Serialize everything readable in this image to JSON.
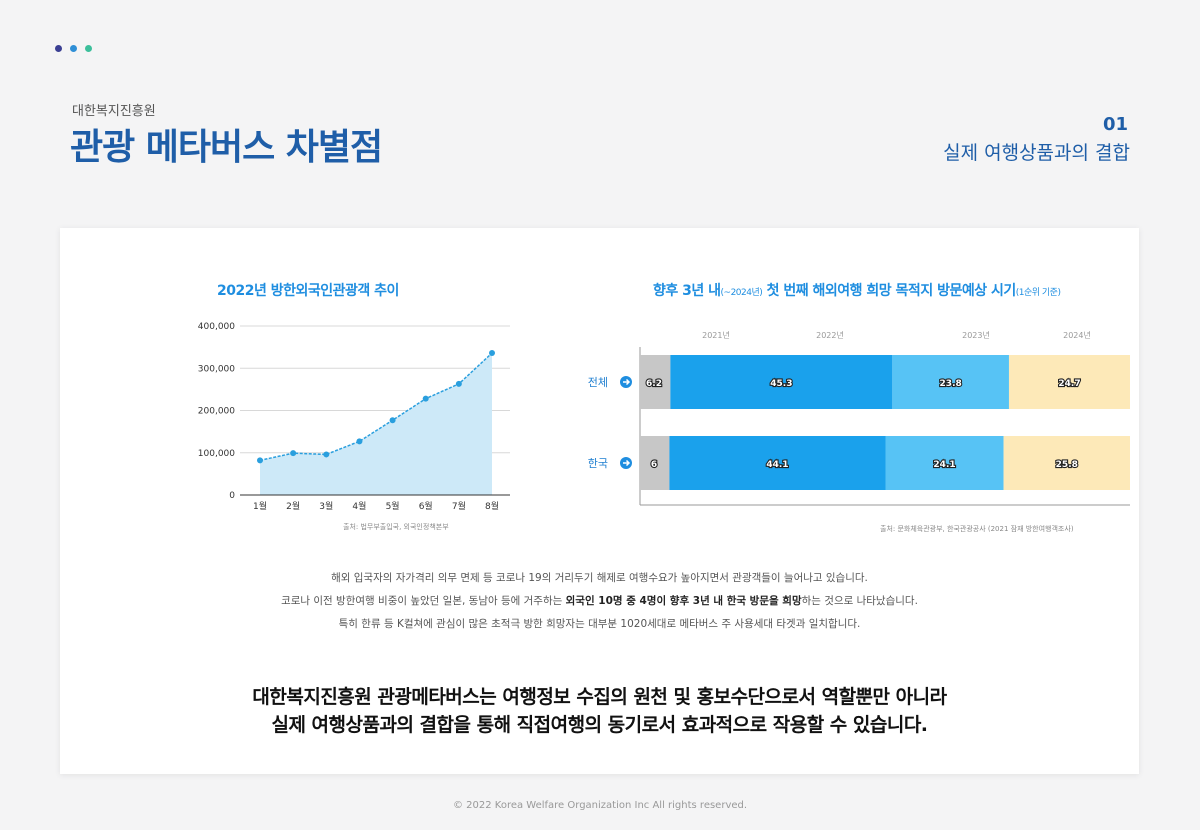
{
  "header": {
    "org": "대한복지진흥원",
    "title": "관광 메타버스 차별점",
    "section_number": "01",
    "section_title": "실제 여행상품과의 결합"
  },
  "colors": {
    "brand": "#1f5ea8",
    "chart_title": "#1f8ee0",
    "dots": [
      "#3b3f93",
      "#2f8fd6",
      "#3cbf9b"
    ]
  },
  "chart_data": [
    {
      "type": "area",
      "title": "2022년 방한외국인관광객 추이",
      "categories": [
        "1월",
        "2월",
        "3월",
        "4월",
        "5월",
        "6월",
        "7월",
        "8월"
      ],
      "values": [
        82000,
        99000,
        96000,
        127000,
        177000,
        228000,
        263000,
        336000
      ],
      "yticks": [
        "0",
        "100,000",
        "200,000",
        "300,000",
        "400,000"
      ],
      "ylim": [
        0,
        400000
      ],
      "grid": true,
      "source": "출처: 법무부출입국, 외국인정책본부"
    },
    {
      "type": "bar",
      "stacked": true,
      "horizontal": true,
      "title_main": "향후 3년 내",
      "title_sub": "(~2024년)",
      "title_rest": " 첫 번째 해외여행 희망 목적지 방문예상 시기",
      "title_tail": "(1순위 기준)",
      "series_labels": [
        "2021년",
        "2022년",
        "2023년",
        "2024년"
      ],
      "series_colors": [
        "#c7c7c7",
        "#1aa1ec",
        "#57c3f5",
        "#fde9b8"
      ],
      "rows": [
        {
          "name": "전체",
          "values": [
            6.2,
            45.3,
            23.8,
            24.7
          ]
        },
        {
          "name": "한국",
          "values": [
            6,
            44.1,
            24.1,
            25.8
          ]
        }
      ],
      "source": "출처: 문화체육관광부, 한국관광공사 (2021 잠재 방한여행객조사)"
    }
  ],
  "description": {
    "line1": "해외 입국자의 자가격리 의무 면제 등 코로나 19의 거리두기 해제로 여행수요가 높아지면서 관광객들이 늘어나고 있습니다.",
    "line2_pre": "코로나 이전 방한여행 비중이 높았던 일본, 동남아 등에 거주하는 ",
    "line2_bold": "외국인 10명 중 4명이 향후 3년 내 한국 방문을 희망",
    "line2_post": "하는 것으로 나타났습니다.",
    "line3": "특히 한류 등 K컬쳐에 관심이 많은 초적극 방한 희망자는 대부분 1020세대로 메타버스 주 사용세대 타겟과 일치합니다."
  },
  "summary": {
    "line1": "대한복지진흥원 관광메타버스는 여행정보 수집의 원천 및 홍보수단으로서 역할뿐만 아니라",
    "line2": "실제 여행상품과의 결합을 통해 직접여행의 동기로서 효과적으로 작용할 수 있습니다."
  },
  "footer": "© 2022 Korea Welfare Organization Inc All rights reserved."
}
